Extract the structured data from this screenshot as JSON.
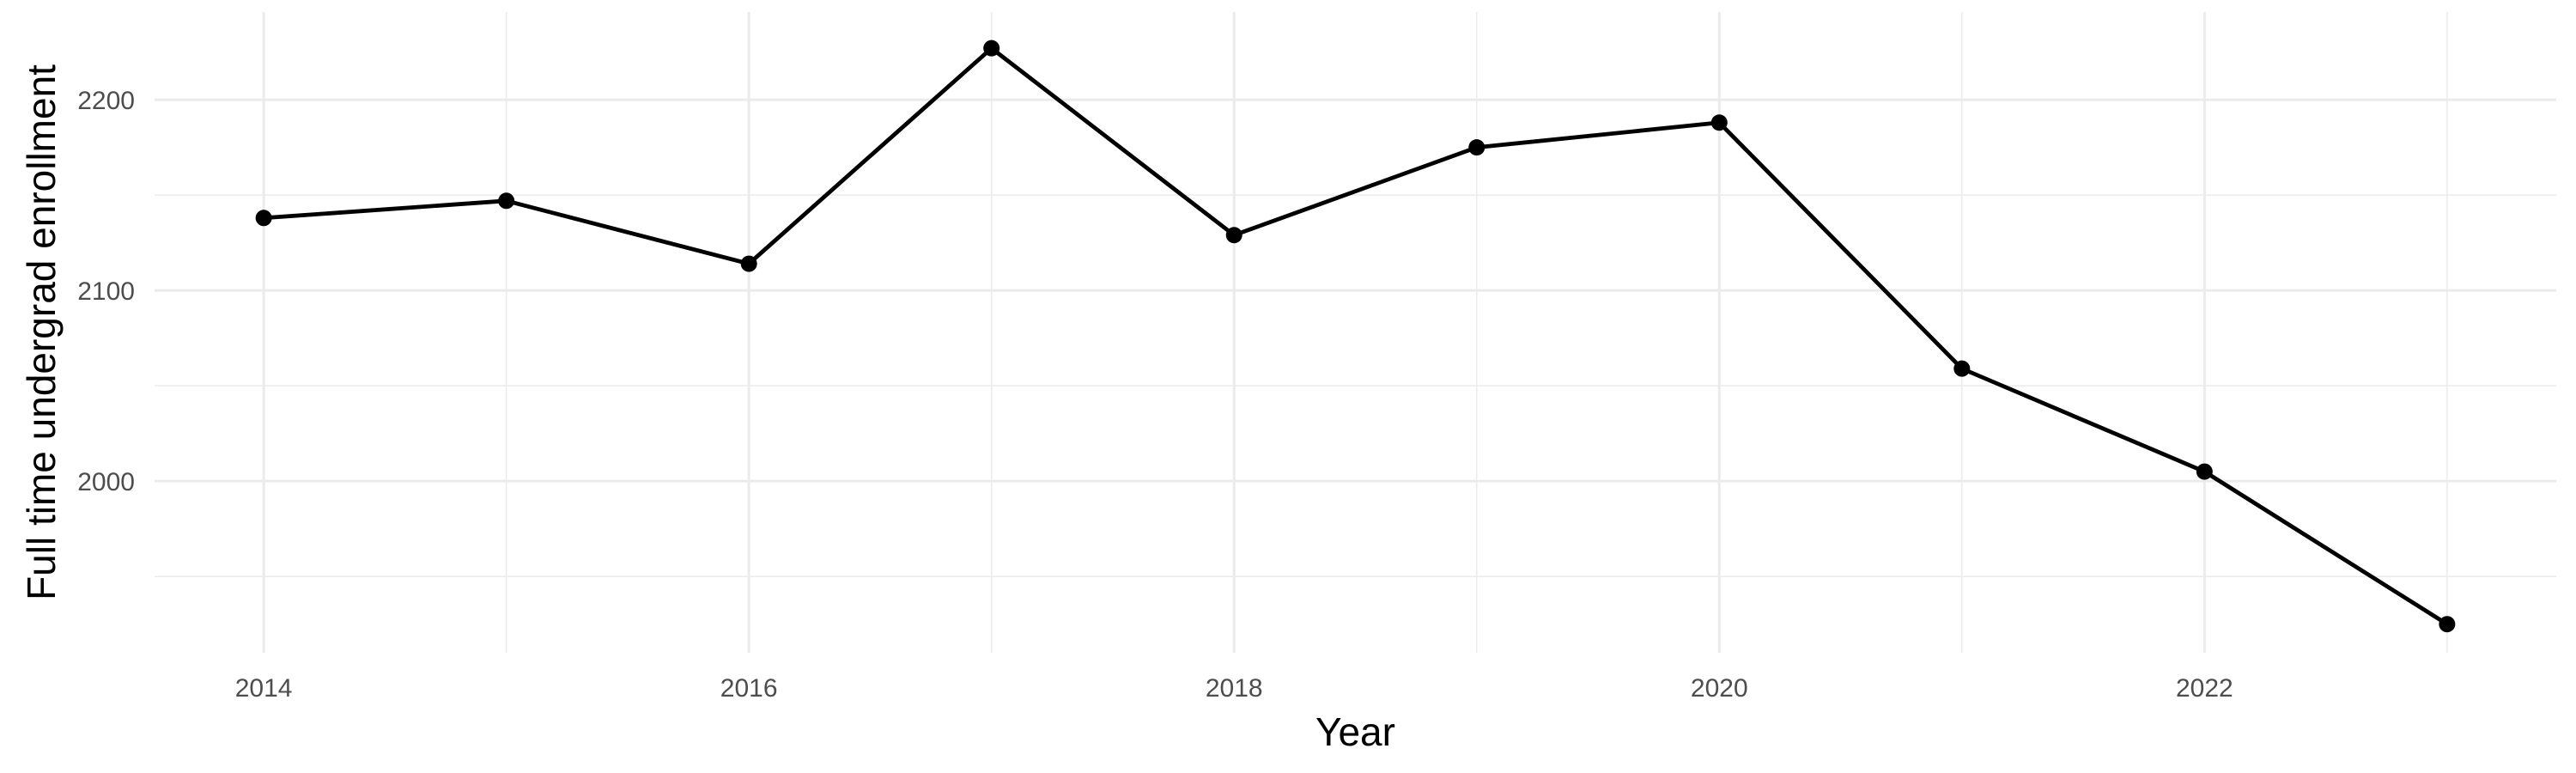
{
  "chart_data": {
    "type": "line",
    "title": "",
    "xlabel": "Year",
    "ylabel": "Full time undergrad enrollment",
    "x": [
      2014,
      2015,
      2016,
      2017,
      2018,
      2019,
      2020,
      2021,
      2022,
      2023
    ],
    "values": [
      2138,
      2147,
      2114,
      2227,
      2129,
      2175,
      2188,
      2059,
      2005,
      1925
    ],
    "series": [
      {
        "name": "Full time undergrad enrollment",
        "values": [
          2138,
          2147,
          2114,
          2227,
          2129,
          2175,
          2188,
          2059,
          2005,
          1925
        ]
      }
    ],
    "xlim": [
      2013.55,
      2023.45
    ],
    "ylim": [
      1910,
      2246
    ],
    "x_ticks": {
      "major": [
        2014,
        2016,
        2018,
        2020,
        2022
      ],
      "major_labels": [
        "2014",
        "2016",
        "2018",
        "2020",
        "2022"
      ],
      "minor": [
        2015,
        2017,
        2019,
        2021,
        2023
      ]
    },
    "y_ticks": {
      "major": [
        2000,
        2100,
        2200
      ],
      "major_labels": [
        "2000",
        "2100",
        "2200"
      ],
      "minor": [
        1950,
        2050,
        2150
      ]
    },
    "grid": "on",
    "legend": "none",
    "style": {
      "line_color": "#000000",
      "point_color": "#000000",
      "grid_color": "#EBEBEB",
      "tick_label_color": "#4D4D4D",
      "axis_title_color": "#000000",
      "background": "#FFFFFF"
    }
  }
}
